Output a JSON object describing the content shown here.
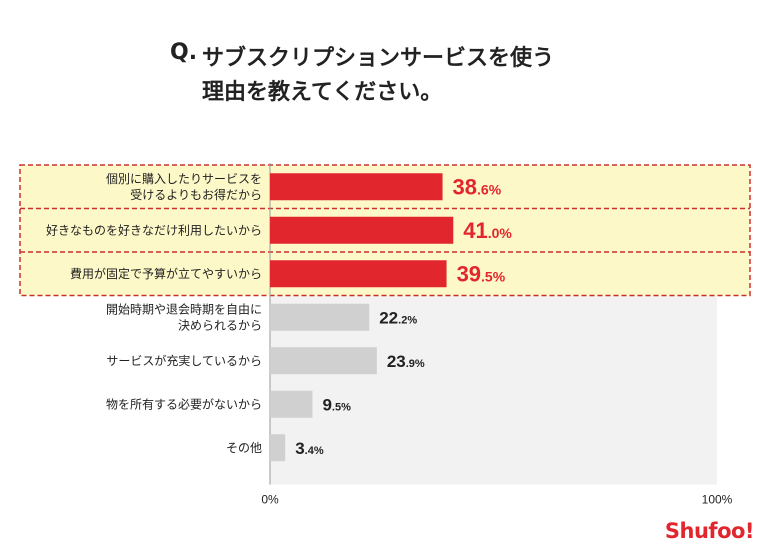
{
  "title": {
    "q": "Q.",
    "line1": "サブスクリプションサービスを使う",
    "line2": "理由を教えてください。"
  },
  "logo": "Shufoo!",
  "chart_data": {
    "type": "bar",
    "orientation": "horizontal",
    "categories": [
      [
        "個別に購入したりサービスを",
        "受けるよりもお得だから"
      ],
      [
        "好きなものを好きなだけ利用したいから"
      ],
      [
        "費用が固定で予算が立てやすいから"
      ],
      [
        "開始時期や退会時期を自由に",
        "決められるから"
      ],
      [
        "サービスが充実しているから"
      ],
      [
        "物を所有する必要がないから"
      ],
      [
        "その他"
      ]
    ],
    "values": [
      38.6,
      41.0,
      39.5,
      22.2,
      23.9,
      9.5,
      3.4
    ],
    "value_labels": [
      [
        "38",
        ".6%"
      ],
      [
        "41",
        ".0%"
      ],
      [
        "39",
        ".5%"
      ],
      [
        "22",
        ".2%"
      ],
      [
        "23",
        ".9%"
      ],
      [
        "9",
        ".5%"
      ],
      [
        "3",
        ".4%"
      ]
    ],
    "highlighted": [
      0,
      1,
      2
    ],
    "xlim": [
      0,
      100
    ],
    "x_tick_labels": [
      "0%",
      "100%"
    ],
    "colors": {
      "highlight_bar": "#e2262d",
      "normal_bar": "#d0d0d0",
      "highlight_label": "#e2262d",
      "normal_label": "#222222",
      "highlight_bg": "#fdf8c8",
      "highlight_border": "#c9302c",
      "plot_bg": "#f2f2f2"
    }
  }
}
